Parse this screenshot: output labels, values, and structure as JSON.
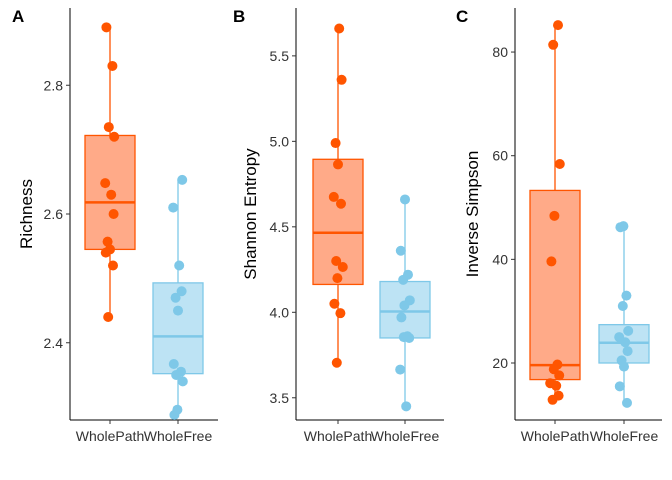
{
  "chart_data": [
    {
      "type": "box",
      "panel_label": "A",
      "ylabel": "Richness",
      "xlabel": "",
      "categories": [
        "WholePath",
        "WholeFree"
      ],
      "ylim": [
        2.28,
        2.92
      ],
      "yticks": [
        2.4,
        2.6,
        2.8
      ],
      "ytick_labels": [
        "2.4",
        "2.6",
        "2.8"
      ],
      "series": [
        {
          "box": {
            "q1": 2.545,
            "median": 2.618,
            "q3": 2.722,
            "whisker_low": 2.44,
            "whisker_high": 2.89
          },
          "points": [
            2.89,
            2.83,
            2.735,
            2.72,
            2.648,
            2.63,
            2.6,
            2.557,
            2.545,
            2.54,
            2.52,
            2.44
          ]
        },
        {
          "box": {
            "q1": 2.352,
            "median": 2.41,
            "q3": 2.493,
            "whisker_low": 2.288,
            "whisker_high": 2.653
          },
          "points": [
            2.653,
            2.61,
            2.52,
            2.48,
            2.47,
            2.45,
            2.367,
            2.355,
            2.35,
            2.34,
            2.296,
            2.288
          ]
        }
      ]
    },
    {
      "type": "box",
      "panel_label": "B",
      "ylabel": "Shannon Entropy",
      "xlabel": "",
      "categories": [
        "WholePath",
        "WholeFree"
      ],
      "ylim": [
        3.37,
        5.78
      ],
      "yticks": [
        3.5,
        4.0,
        4.5,
        5.0,
        5.5
      ],
      "ytick_labels": [
        "3.5",
        "4.0",
        "4.5",
        "5.0",
        "5.5"
      ],
      "series": [
        {
          "box": {
            "q1": 4.163,
            "median": 4.465,
            "q3": 4.895,
            "whisker_low": 3.705,
            "whisker_high": 5.66
          },
          "points": [
            5.66,
            5.36,
            4.99,
            4.865,
            4.675,
            4.635,
            4.3,
            4.265,
            4.2,
            4.05,
            3.995,
            3.705
          ]
        },
        {
          "box": {
            "q1": 3.85,
            "median": 4.005,
            "q3": 4.18,
            "whisker_low": 3.45,
            "whisker_high": 4.66
          },
          "points": [
            4.66,
            4.36,
            4.22,
            4.19,
            4.07,
            4.04,
            3.97,
            3.86,
            3.855,
            3.85,
            3.665,
            3.45
          ]
        }
      ]
    },
    {
      "type": "box",
      "panel_label": "C",
      "ylabel": "Inverse Simpson",
      "xlabel": "",
      "categories": [
        "WholePath",
        "WholeFree"
      ],
      "ylim": [
        9,
        88.5
      ],
      "yticks": [
        20,
        40,
        60,
        80
      ],
      "ytick_labels": [
        "20",
        "40",
        "60",
        "80"
      ],
      "series": [
        {
          "box": {
            "q1": 16.8,
            "median": 19.6,
            "q3": 53.3,
            "whisker_low": 12.9,
            "whisker_high": 85.2
          },
          "points": [
            85.2,
            81.4,
            58.4,
            48.4,
            39.6,
            19.7,
            18.8,
            17.6,
            16.1,
            15.6,
            13.7,
            12.9
          ]
        },
        {
          "box": {
            "q1": 20.0,
            "median": 23.9,
            "q3": 27.4,
            "whisker_low": 12.3,
            "whisker_high": 46.4
          },
          "points": [
            46.4,
            46.2,
            33.0,
            31.0,
            26.2,
            25.0,
            24.0,
            22.3,
            20.5,
            19.3,
            15.5,
            12.3
          ]
        }
      ]
    }
  ],
  "colors": {
    "path_box_fill": "#ffaa88",
    "path_line": "#ff5500",
    "free_box_fill": "#bde3f4",
    "free_line": "#7ec8e8"
  }
}
